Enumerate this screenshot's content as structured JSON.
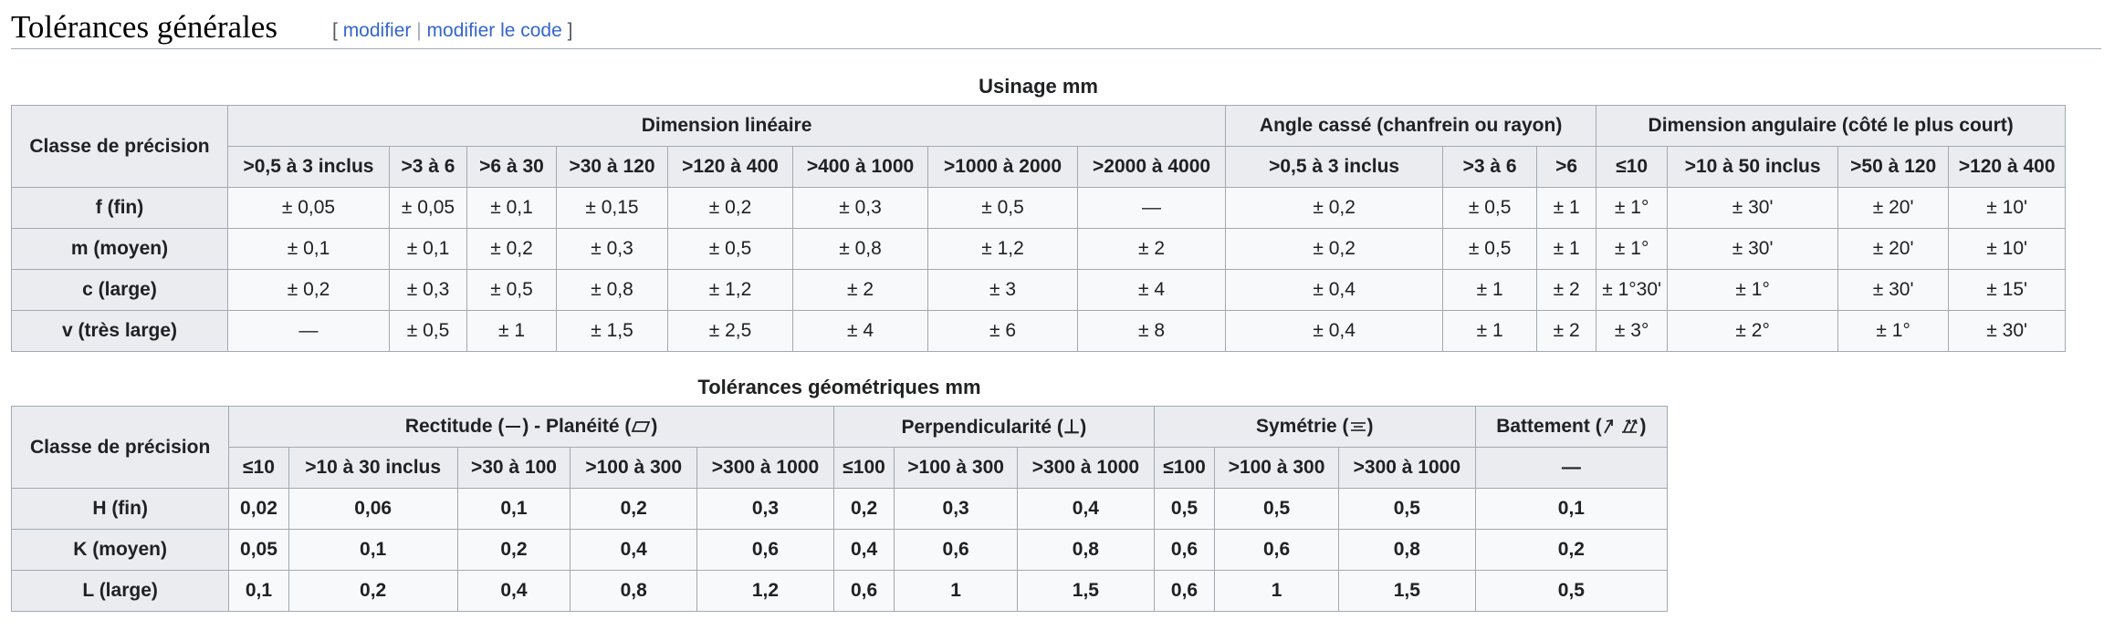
{
  "section": {
    "title": "Tolérances générales",
    "edit_open": "[",
    "edit_link": "modifier",
    "edit_sep": "|",
    "edit_code_link": "modifier le code",
    "edit_close": "]"
  },
  "usinage": {
    "caption": "Usinage mm",
    "class_header": "Classe de précision",
    "group_headers": [
      "Dimension linéaire",
      "Angle cassé (chanfrein ou rayon)",
      "Dimension angulaire (côté le plus court)"
    ],
    "columns": [
      ">0,5 à 3 inclus",
      ">3 à 6",
      ">6 à 30",
      ">30 à 120",
      ">120 à 400",
      ">400 à 1000",
      ">1000 à 2000",
      ">2000 à 4000",
      ">0,5 à 3 inclus",
      ">3 à 6",
      ">6",
      "≤10",
      ">10 à 50 inclus",
      ">50 à 120",
      ">120 à 400"
    ],
    "rows": [
      {
        "class": "f (fin)",
        "cells": [
          "± 0,05",
          "± 0,05",
          "± 0,1",
          "± 0,15",
          "± 0,2",
          "± 0,3",
          "± 0,5",
          "—",
          "± 0,2",
          "± 0,5",
          "± 1",
          "± 1°",
          "± 30'",
          "± 20'",
          "± 10'"
        ]
      },
      {
        "class": "m (moyen)",
        "cells": [
          "± 0,1",
          "± 0,1",
          "± 0,2",
          "± 0,3",
          "± 0,5",
          "± 0,8",
          "± 1,2",
          "± 2",
          "± 0,2",
          "± 0,5",
          "± 1",
          "± 1°",
          "± 30'",
          "± 20'",
          "± 10'"
        ]
      },
      {
        "class": "c (large)",
        "cells": [
          "± 0,2",
          "± 0,3",
          "± 0,5",
          "± 0,8",
          "± 1,2",
          "± 2",
          "± 3",
          "± 4",
          "± 0,4",
          "± 1",
          "± 2",
          "± 1°30'",
          "± 1°",
          "± 30'",
          "± 15'"
        ]
      },
      {
        "class": "v (très large)",
        "cells": [
          "—",
          "± 0,5",
          "± 1",
          "± 1,5",
          "± 2,5",
          "± 4",
          "± 6",
          "± 8",
          "± 0,4",
          "± 1",
          "± 2",
          "± 3°",
          "± 2°",
          "± 1°",
          "± 30'"
        ]
      }
    ]
  },
  "geometrique": {
    "caption": "Tolérances géométriques mm",
    "class_header": "Classe de précision",
    "group_headers": [
      {
        "label_before": "Rectitude (",
        "label_mid": ") - Planéité (",
        "label_after": ")"
      },
      {
        "label_before": "Perpendicularité (",
        "symbol": "⊥",
        "label_after": ")"
      },
      {
        "label_before": "Symétrie (",
        "symbol": "⌯",
        "label_after": ")"
      },
      {
        "label_before": "Battement (",
        "label_after": ")"
      }
    ],
    "columns": [
      "≤10",
      ">10 à 30 inclus",
      ">30 à 100",
      ">100 à 300",
      ">300 à 1000",
      "≤100",
      ">100 à 300",
      ">300 à 1000",
      "≤100",
      ">100 à 300",
      ">300 à 1000",
      "—"
    ],
    "rows": [
      {
        "class": "H (fin)",
        "cells": [
          "0,02",
          "0,06",
          "0,1",
          "0,2",
          "0,3",
          "0,2",
          "0,3",
          "0,4",
          "0,5",
          "0,5",
          "0,5",
          "0,1"
        ]
      },
      {
        "class": "K (moyen)",
        "cells": [
          "0,05",
          "0,1",
          "0,2",
          "0,4",
          "0,6",
          "0,4",
          "0,6",
          "0,8",
          "0,6",
          "0,6",
          "0,8",
          "0,2"
        ]
      },
      {
        "class": "L (large)",
        "cells": [
          "0,1",
          "0,2",
          "0,4",
          "0,8",
          "1,2",
          "0,6",
          "1",
          "1,5",
          "0,6",
          "1",
          "1,5",
          "0,5"
        ]
      }
    ]
  }
}
